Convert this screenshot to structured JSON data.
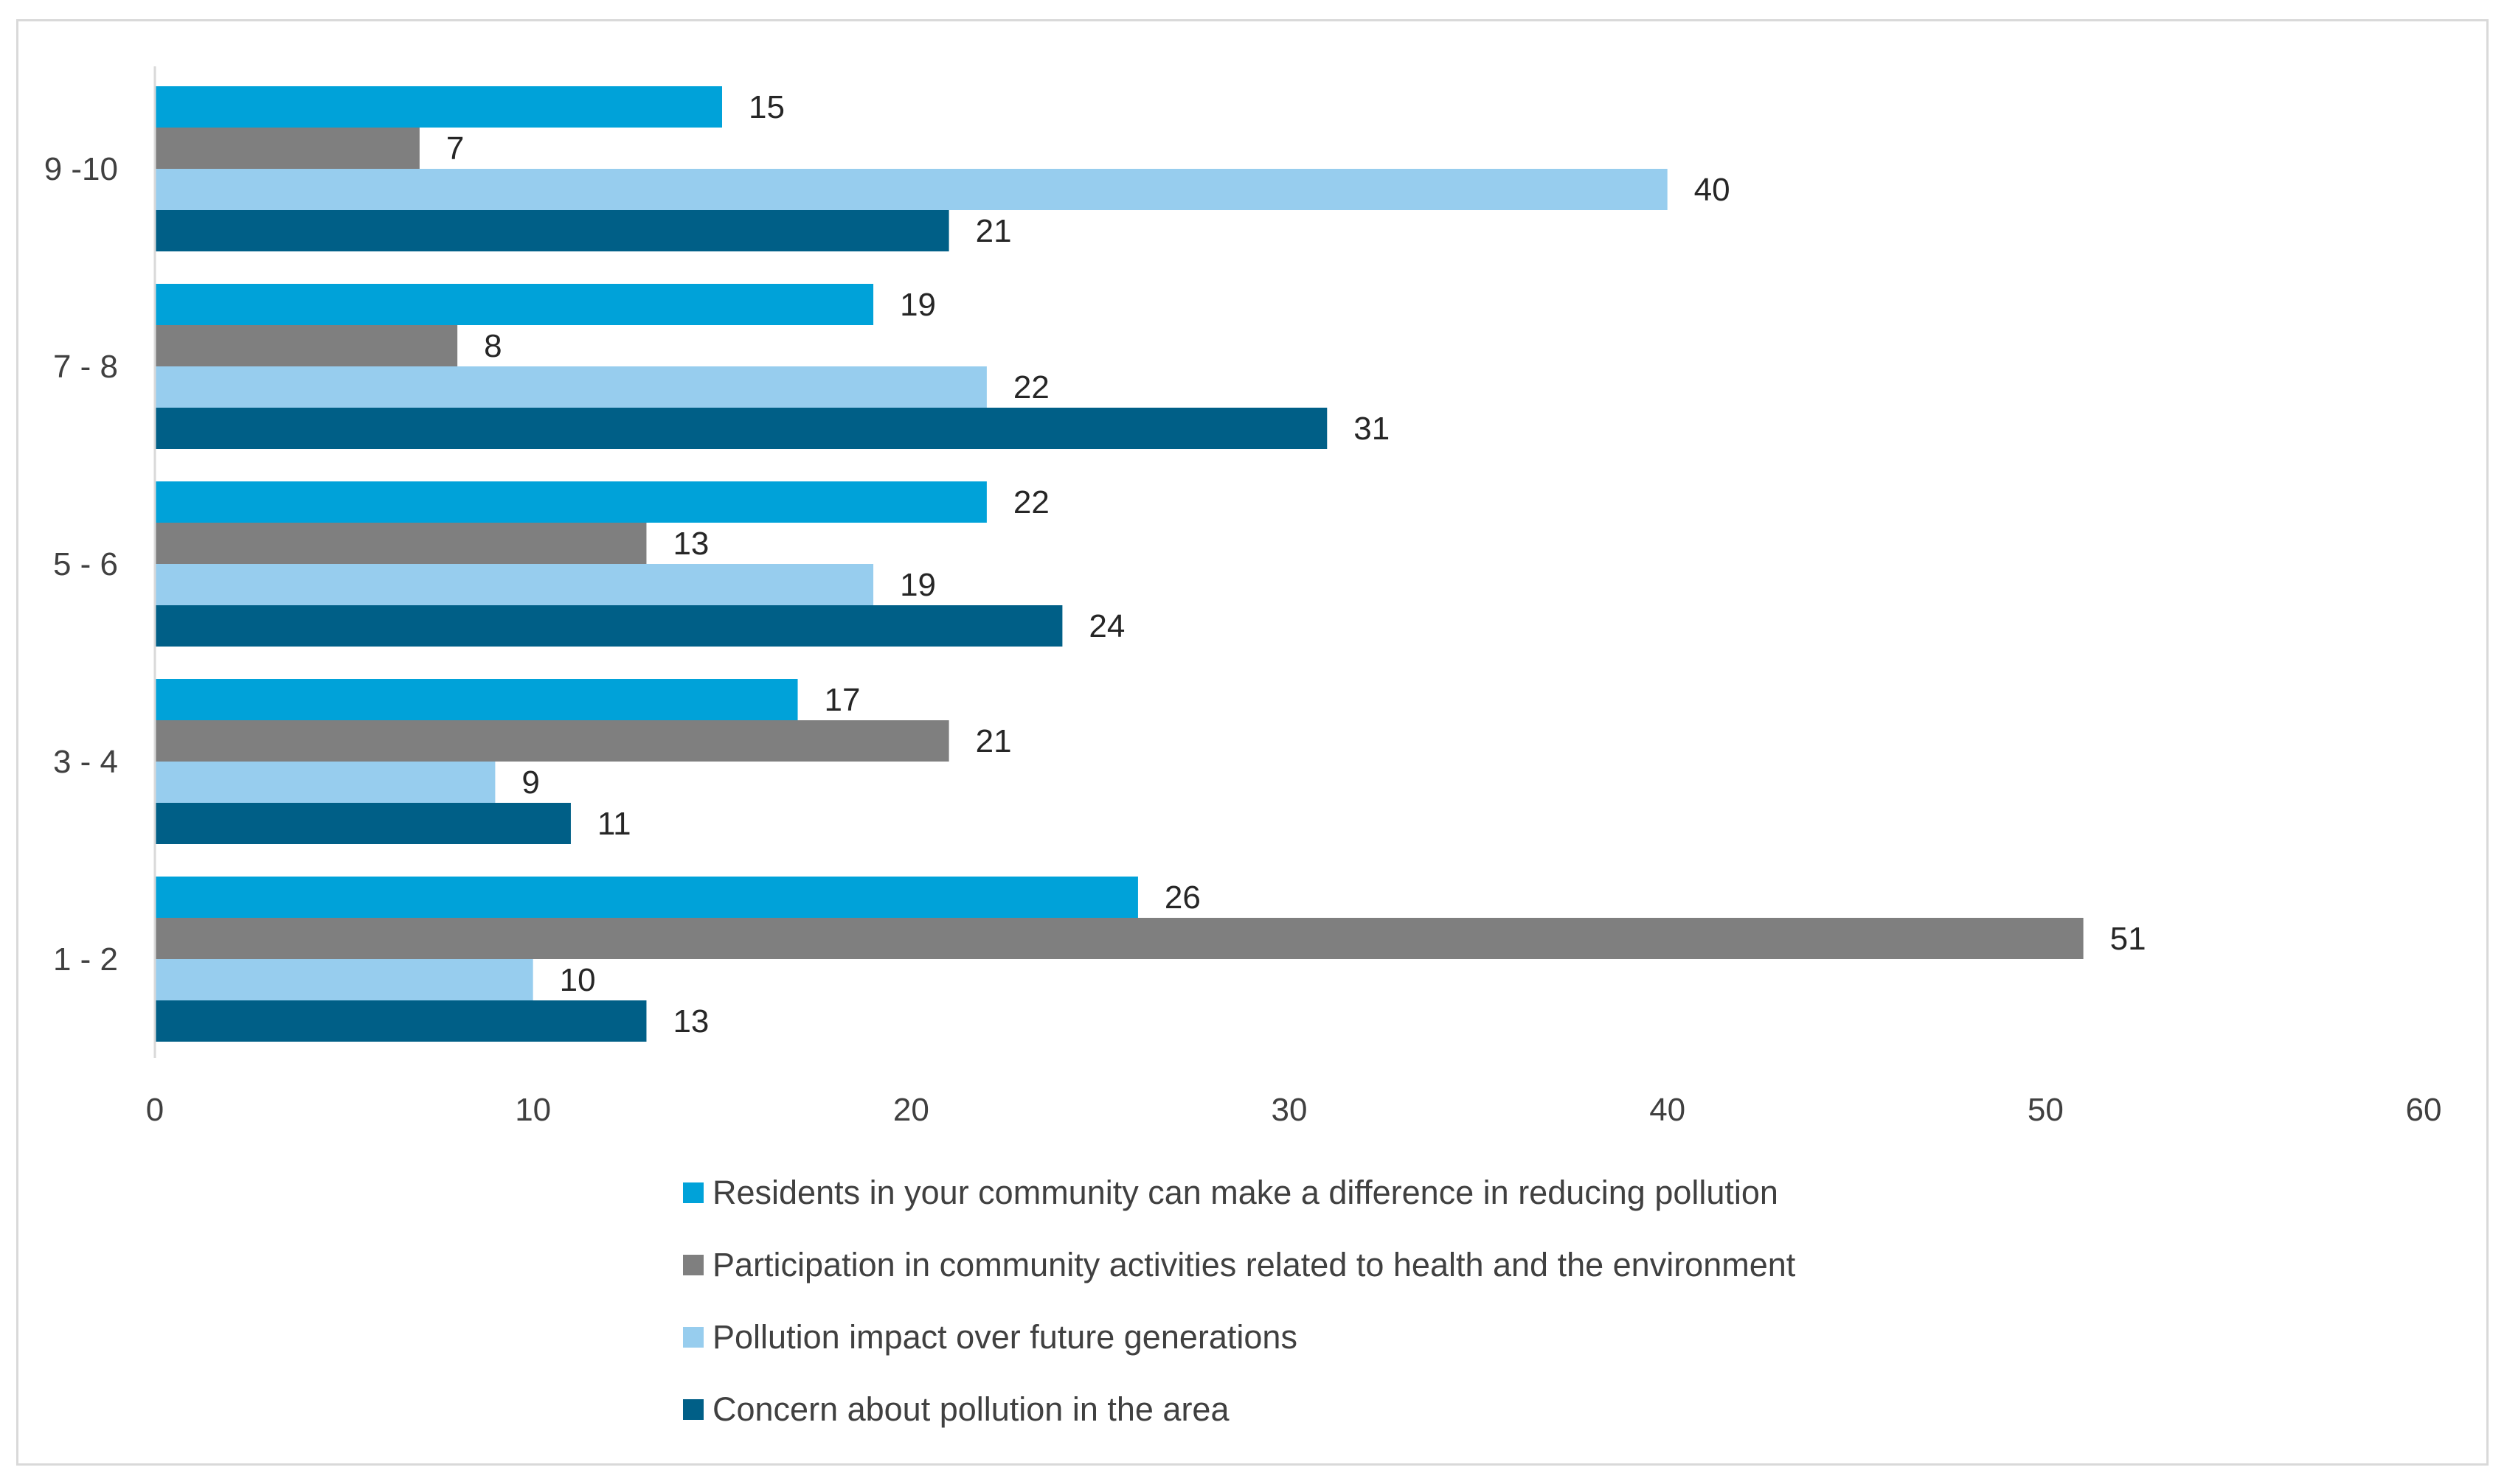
{
  "chart_data": {
    "type": "bar",
    "orientation": "horizontal",
    "title": "",
    "xlabel": "",
    "ylabel": "",
    "xlim": [
      0,
      60
    ],
    "x_ticks": [
      0,
      10,
      20,
      30,
      40,
      50,
      60
    ],
    "grid": false,
    "legend_position": "bottom",
    "categories": [
      "1 - 2",
      "3 - 4",
      "5 - 6",
      "7 - 8",
      "9 -10"
    ],
    "series": [
      {
        "name": "Residents in your community can make a difference in reducing pollution",
        "color": "#00a2d9",
        "values": [
          26,
          17,
          22,
          19,
          15
        ]
      },
      {
        "name": "Participation in community activities related to health and the environment",
        "color": "#7f7f7f",
        "values": [
          51,
          21,
          13,
          8,
          7
        ]
      },
      {
        "name": "Pollution impact over future generations",
        "color": "#97cdee",
        "values": [
          10,
          9,
          19,
          22,
          40
        ]
      },
      {
        "name": "Concern about pollution in the area",
        "color": "#005f87",
        "values": [
          13,
          11,
          24,
          31,
          21
        ]
      }
    ]
  }
}
